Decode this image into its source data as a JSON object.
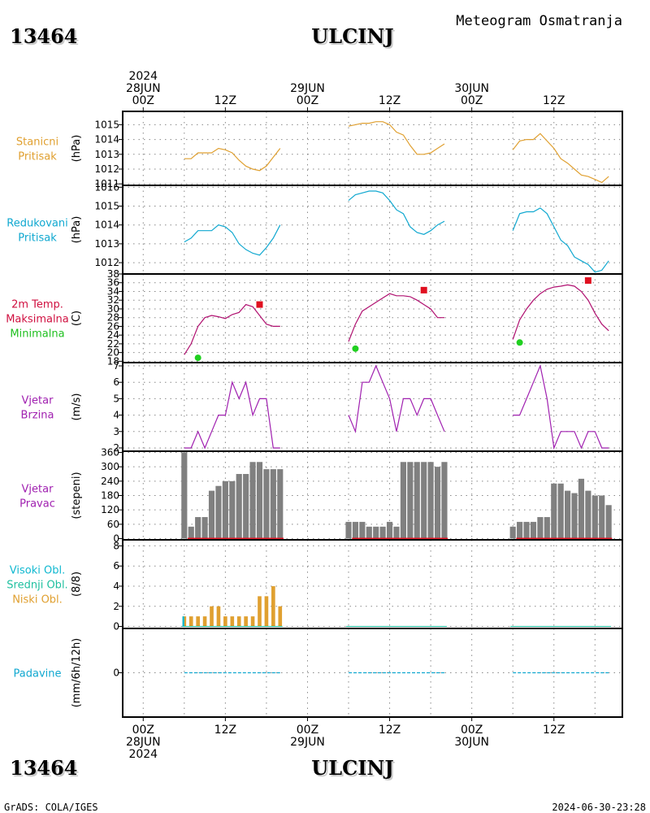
{
  "header": {
    "station_id": "13464",
    "station_name": "ULCINJ",
    "product": "Meteogram Osmatranja",
    "footer_left": "GrADS: COLA/IGES",
    "footer_right": "2024-06-30-23:28"
  },
  "time_axis": {
    "top_labels": [
      {
        "hour": 0,
        "lines": [
          "2024",
          "28JUN",
          "00Z"
        ]
      },
      {
        "hour": 12,
        "lines": [
          "12Z"
        ]
      },
      {
        "hour": 24,
        "lines": [
          "29JUN",
          "00Z"
        ]
      },
      {
        "hour": 36,
        "lines": [
          "12Z"
        ]
      },
      {
        "hour": 48,
        "lines": [
          "30JUN",
          "00Z"
        ]
      },
      {
        "hour": 60,
        "lines": [
          "12Z"
        ]
      }
    ],
    "bottom_labels": [
      {
        "hour": 0,
        "lines": [
          "00Z",
          "28JUN",
          "2024"
        ]
      },
      {
        "hour": 12,
        "lines": [
          "12Z"
        ]
      },
      {
        "hour": 24,
        "lines": [
          "00Z",
          "29JUN"
        ]
      },
      {
        "hour": 36,
        "lines": [
          "12Z"
        ]
      },
      {
        "hour": 48,
        "lines": [
          "00Z",
          "30JUN"
        ]
      },
      {
        "hour": 60,
        "lines": [
          "12Z"
        ]
      }
    ],
    "range_hours": [
      -3,
      70
    ]
  },
  "colors": {
    "station_pressure": "#e0a030",
    "reduced_pressure": "#10a8d0",
    "temperature": "#b01070",
    "tmax": "#e01020",
    "tmin": "#20d020",
    "wind": "#a020b0",
    "wind_dir_bar": "#808080",
    "wind_dir_base": "#e01020",
    "high_cloud": "#10b8d0",
    "mid_cloud": "#20c0a0",
    "low_cloud": "#e0a030",
    "precip": "#10a8d0"
  },
  "panels": [
    {
      "id": "stanicni",
      "labels": [
        "Stanicni",
        "Pritisak"
      ],
      "label_colors": [
        "#e0a030",
        "#e0a030"
      ],
      "unit": "(hPa)",
      "ticks": [
        "1011",
        "1012",
        "1013",
        "1014",
        "1015"
      ]
    },
    {
      "id": "redukovani",
      "labels": [
        "Redukovani",
        "Pritisak"
      ],
      "label_colors": [
        "#10a8d0",
        "#10a8d0"
      ],
      "unit": "(hPa)",
      "ticks": [
        "1012",
        "1013",
        "1014",
        "1015",
        "1016"
      ]
    },
    {
      "id": "temp",
      "labels": [
        "2m Temp.",
        "Maksimalna",
        "Minimalna"
      ],
      "label_colors": [
        "#d01040",
        "#d01040",
        "#20c020"
      ],
      "unit": "(C)",
      "ticks": [
        "18",
        "20",
        "22",
        "24",
        "26",
        "28",
        "30",
        "32",
        "34",
        "36",
        "38"
      ]
    },
    {
      "id": "brzina",
      "labels": [
        "Vjetar",
        "Brzina"
      ],
      "label_colors": [
        "#a020b0",
        "#a020b0"
      ],
      "unit": "(m/s)",
      "ticks": [
        "2",
        "3",
        "4",
        "5",
        "6",
        "7"
      ]
    },
    {
      "id": "pravac",
      "labels": [
        "Vjetar",
        "Pravac"
      ],
      "label_colors": [
        "#a020b0",
        "#a020b0"
      ],
      "unit": "(stepeni)",
      "ticks": [
        "0",
        "60",
        "120",
        "180",
        "240",
        "300",
        "360"
      ]
    },
    {
      "id": "oblaci",
      "labels": [
        "Visoki Obl.",
        "Srednji Obl.",
        "Niski Obl."
      ],
      "label_colors": [
        "#10b8d0",
        "#20c0a0",
        "#e0a030"
      ],
      "unit": "(8/8)",
      "ticks": [
        "0",
        "2",
        "4",
        "6",
        "8"
      ]
    },
    {
      "id": "padavine",
      "labels": [
        "Padavine"
      ],
      "label_colors": [
        "#10a8d0"
      ],
      "unit": "(mm/6h/12h)",
      "ticks": [
        "0"
      ]
    }
  ],
  "chart_data": [
    {
      "type": "line",
      "title": "Stanicni Pritisak",
      "ylabel": "(hPa)",
      "ylim": [
        1010.9,
        1015.9
      ],
      "segments": [
        {
          "x": [
            6,
            7,
            8,
            9,
            10,
            11,
            12,
            13,
            14,
            15,
            16,
            17,
            18,
            19,
            20
          ],
          "y": [
            1012.7,
            1012.7,
            1013.1,
            1013.1,
            1013.1,
            1013.4,
            1013.3,
            1013.1,
            1012.6,
            1012.2,
            1012.0,
            1011.9,
            1012.2,
            1012.8,
            1013.4
          ]
        },
        {
          "x": [
            30,
            31,
            32,
            33,
            34,
            35,
            36,
            37,
            38,
            39,
            40,
            41,
            42,
            43,
            44
          ],
          "y": [
            1014.9,
            1015.0,
            1015.1,
            1015.1,
            1015.2,
            1015.2,
            1015.0,
            1014.5,
            1014.3,
            1013.6,
            1013.0,
            1013.0,
            1013.1,
            1013.4,
            1013.7
          ]
        },
        {
          "x": [
            54,
            55,
            56,
            57,
            58,
            59,
            60,
            61,
            62,
            63,
            64,
            65,
            66,
            67,
            68
          ],
          "y": [
            1013.3,
            1013.9,
            1014.0,
            1014.0,
            1014.4,
            1013.9,
            1013.4,
            1012.7,
            1012.4,
            1012.0,
            1011.6,
            1011.5,
            1011.3,
            1011.1,
            1011.5
          ]
        }
      ]
    },
    {
      "type": "line",
      "title": "Redukovani Pritisak",
      "ylabel": "(hPa)",
      "ylim": [
        1011.4,
        1016.1
      ],
      "segments": [
        {
          "x": [
            6,
            7,
            8,
            9,
            10,
            11,
            12,
            13,
            14,
            15,
            16,
            17,
            18,
            19,
            20
          ],
          "y": [
            1013.1,
            1013.3,
            1013.7,
            1013.7,
            1013.7,
            1014.0,
            1013.9,
            1013.6,
            1013.0,
            1012.7,
            1012.5,
            1012.4,
            1012.8,
            1013.3,
            1014.0
          ]
        },
        {
          "x": [
            30,
            31,
            32,
            33,
            34,
            35,
            36,
            37,
            38,
            39,
            40,
            41,
            42,
            43,
            44
          ],
          "y": [
            1015.3,
            1015.6,
            1015.7,
            1015.8,
            1015.8,
            1015.7,
            1015.3,
            1014.8,
            1014.6,
            1013.9,
            1013.6,
            1013.5,
            1013.7,
            1014.0,
            1014.2
          ]
        },
        {
          "x": [
            54,
            55,
            56,
            57,
            58,
            59,
            60,
            61,
            62,
            63,
            64,
            65,
            66,
            67,
            68
          ],
          "y": [
            1013.7,
            1014.6,
            1014.7,
            1014.7,
            1014.9,
            1014.6,
            1013.9,
            1013.2,
            1012.9,
            1012.3,
            1012.1,
            1011.9,
            1011.5,
            1011.6,
            1012.1
          ]
        }
      ]
    },
    {
      "type": "line",
      "title": "2m Temp. / Maksimalna / Minimalna",
      "ylabel": "(C)",
      "ylim": [
        17.7,
        38.0
      ],
      "series": [
        {
          "name": "2m Temp.",
          "segments": [
            {
              "x": [
                6,
                7,
                8,
                9,
                10,
                11,
                12,
                13,
                14,
                15,
                16,
                17,
                18,
                19,
                20
              ],
              "y": [
                19.5,
                22.0,
                26.0,
                28.0,
                28.5,
                28.2,
                27.8,
                28.7,
                29.2,
                31.0,
                30.5,
                28.5,
                26.5,
                26.0,
                26.0
              ]
            },
            {
              "x": [
                30,
                31,
                32,
                33,
                34,
                35,
                36,
                37,
                38,
                39,
                40,
                41,
                42,
                43,
                44
              ],
              "y": [
                22.5,
                26.5,
                29.5,
                30.5,
                31.5,
                32.5,
                33.5,
                33.0,
                33.0,
                32.8,
                32.0,
                31.0,
                30.0,
                28.0,
                28.0
              ]
            },
            {
              "x": [
                54,
                55,
                56,
                57,
                58,
                59,
                60,
                61,
                62,
                63,
                64,
                65,
                66,
                67,
                68
              ],
              "y": [
                23.0,
                27.5,
                30.0,
                32.0,
                33.5,
                34.5,
                35.0,
                35.2,
                35.5,
                35.2,
                34.0,
                32.0,
                29.0,
                26.5,
                25.0
              ]
            }
          ]
        },
        {
          "name": "Maksimalna",
          "x": [
            17,
            41,
            65
          ],
          "y": [
            31.0,
            34.3,
            36.5
          ]
        },
        {
          "name": "Minimalna",
          "x": [
            8,
            31,
            55
          ],
          "y": [
            18.8,
            20.9,
            22.3
          ]
        }
      ]
    },
    {
      "type": "line",
      "title": "Vjetar Brzina",
      "ylabel": "(m/s)",
      "ylim": [
        1.8,
        7.2
      ],
      "segments": [
        {
          "x": [
            6,
            7,
            8,
            9,
            10,
            11,
            12,
            13,
            14,
            15,
            16,
            17,
            18,
            19,
            20
          ],
          "y": [
            2,
            2,
            3,
            2,
            3,
            4,
            4,
            6,
            5,
            6,
            4,
            5,
            5,
            2,
            2
          ]
        },
        {
          "x": [
            30,
            31,
            32,
            33,
            34,
            35,
            36,
            37,
            38,
            39,
            40,
            41,
            42,
            43,
            44
          ],
          "y": [
            4,
            3,
            6,
            6,
            7,
            6,
            5,
            3,
            5,
            5,
            4,
            5,
            5,
            4,
            3
          ]
        },
        {
          "x": [
            54,
            55,
            56,
            57,
            58,
            59,
            60,
            61,
            62,
            63,
            64,
            65,
            66,
            67,
            68
          ],
          "y": [
            4,
            4,
            5,
            6,
            7,
            5,
            2,
            3,
            3,
            3,
            2,
            3,
            3,
            2,
            2
          ]
        }
      ]
    },
    {
      "type": "bar",
      "title": "Vjetar Pravac",
      "ylabel": "(stepeni)",
      "ylim": [
        -5,
        365
      ],
      "segments": [
        {
          "x": [
            6,
            7,
            8,
            9,
            10,
            11,
            12,
            13,
            14,
            15,
            16,
            17,
            18,
            19,
            20
          ],
          "y": [
            360,
            50,
            90,
            90,
            200,
            220,
            240,
            240,
            270,
            270,
            320,
            320,
            290,
            290,
            290
          ]
        },
        {
          "x": [
            30,
            31,
            32,
            33,
            34,
            35,
            36,
            37,
            38,
            39,
            40,
            41,
            42,
            43,
            44
          ],
          "y": [
            70,
            70,
            70,
            50,
            50,
            50,
            70,
            50,
            320,
            320,
            320,
            320,
            320,
            300,
            320
          ]
        },
        {
          "x": [
            54,
            55,
            56,
            57,
            58,
            59,
            60,
            61,
            62,
            63,
            64,
            65,
            66,
            67,
            68
          ],
          "y": [
            50,
            70,
            70,
            70,
            90,
            90,
            230,
            230,
            200,
            190,
            250,
            200,
            180,
            180,
            140
          ]
        }
      ]
    },
    {
      "type": "bar",
      "title": "Visoki Obl. / Srednji Obl. / Niski Obl.",
      "ylabel": "(8/8)",
      "ylim": [
        -0.2,
        8.6
      ],
      "series": [
        {
          "name": "Niski Obl.",
          "segments": [
            {
              "x": [
                6,
                7,
                8,
                9,
                10,
                11,
                12,
                13,
                14,
                15,
                16,
                17,
                18,
                19,
                20
              ],
              "y": [
                1,
                1,
                1,
                1,
                2,
                2,
                1,
                1,
                1,
                1,
                1,
                3,
                3,
                4,
                2
              ]
            },
            {
              "x": [
                30,
                31,
                32,
                33,
                34,
                35,
                36,
                37,
                38,
                39,
                40,
                41,
                42,
                43,
                44
              ],
              "y": [
                0,
                0,
                0,
                0,
                0,
                0,
                0,
                0,
                0,
                0,
                0,
                0,
                0,
                0,
                0
              ]
            },
            {
              "x": [
                54,
                55,
                56,
                57,
                58,
                59,
                60,
                61,
                62,
                63,
                64,
                65,
                66,
                67,
                68
              ],
              "y": [
                0,
                0,
                0,
                0,
                0,
                0,
                0,
                0,
                0,
                0,
                0,
                0,
                0,
                0,
                0
              ]
            }
          ]
        },
        {
          "name": "Visoki Obl.",
          "segments": [
            {
              "x": [
                6
              ],
              "y": [
                1
              ]
            }
          ]
        }
      ]
    },
    {
      "type": "line",
      "title": "Padavine",
      "ylabel": "(mm/6h/12h)",
      "ylim": [
        -1,
        1
      ],
      "segments": [
        {
          "x": [
            6,
            20
          ],
          "y": [
            0,
            0
          ]
        },
        {
          "x": [
            30,
            44
          ],
          "y": [
            0,
            0
          ]
        },
        {
          "x": [
            54,
            68
          ],
          "y": [
            0,
            0
          ]
        }
      ]
    }
  ]
}
